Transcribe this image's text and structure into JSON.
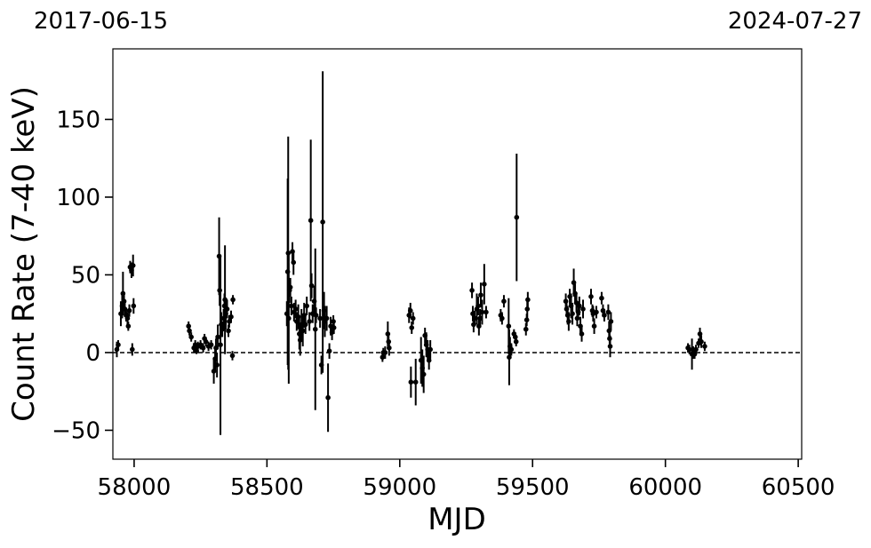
{
  "chart_data": {
    "type": "scatter",
    "annotations": [
      "2017-06-15",
      "2024-07-27"
    ],
    "xlabel": "MJD",
    "ylabel": "Count Rate (7-40 keV)",
    "color": "#000000",
    "hline": 0,
    "xlim": [
      57920,
      60513
    ],
    "ylim": [
      -68.6,
      195.4
    ],
    "xticks": [
      58000,
      58500,
      59000,
      59500,
      60000,
      60500
    ],
    "yticks": [
      {
        "value": -50,
        "label": "−50"
      },
      0,
      50,
      100,
      150
    ],
    "x": [
      57935,
      57940,
      57950,
      57955,
      57958,
      57962,
      57965,
      57970,
      57975,
      57978,
      57982,
      57985,
      57990,
      57993,
      57996,
      57998,
      58205,
      58208,
      58215,
      58225,
      58230,
      58235,
      58240,
      58250,
      58260,
      58265,
      58270,
      58280,
      58290,
      58300,
      58305,
      58308,
      58312,
      58315,
      58320,
      58322,
      58325,
      58328,
      58332,
      58337,
      58340,
      58342,
      58345,
      58350,
      58355,
      58358,
      58365,
      58370,
      58372,
      58575,
      58578,
      58580,
      58582,
      58585,
      58588,
      58592,
      58596,
      58600,
      58602,
      58608,
      58612,
      58618,
      58622,
      58625,
      58630,
      58635,
      58640,
      58645,
      58650,
      58660,
      58665,
      58668,
      58672,
      58678,
      58682,
      58685,
      58700,
      58705,
      58710,
      58715,
      58718,
      58725,
      58730,
      58735,
      58740,
      58745,
      58750,
      58752,
      58935,
      58938,
      58945,
      58955,
      58958,
      58960,
      59035,
      59040,
      59042,
      59045,
      59050,
      59060,
      59080,
      59085,
      59090,
      59095,
      59100,
      59105,
      59110,
      59115,
      59272,
      59275,
      59278,
      59282,
      59290,
      59295,
      59298,
      59302,
      59305,
      59310,
      59318,
      59325,
      59380,
      59385,
      59392,
      59410,
      59412,
      59415,
      59420,
      59430,
      59435,
      59438,
      59440,
      59475,
      59478,
      59480,
      59482,
      59625,
      59628,
      59632,
      59636,
      59640,
      59645,
      59650,
      59655,
      59660,
      59665,
      59668,
      59672,
      59676,
      59680,
      59685,
      59690,
      59720,
      59725,
      59728,
      59732,
      59740,
      59760,
      59765,
      59770,
      59785,
      59788,
      59790,
      59792,
      59795,
      60085,
      60090,
      60100,
      60105,
      60110,
      60115,
      60125,
      60130,
      60135,
      60148
    ],
    "values": [
      2,
      5,
      25,
      30,
      38,
      33,
      28,
      24,
      22,
      17,
      27,
      55,
      53,
      2,
      56,
      30,
      17,
      14,
      10,
      3,
      5,
      1,
      4,
      5,
      3,
      9,
      7,
      4,
      5,
      -12,
      -4,
      3,
      -8,
      10,
      62,
      40,
      5,
      18,
      15,
      22,
      30,
      34,
      25,
      28,
      14,
      20,
      23,
      -2,
      34,
      25,
      52,
      64,
      22,
      40,
      42,
      30,
      65,
      58,
      26,
      28,
      20,
      23,
      12,
      8,
      18,
      14,
      24,
      18,
      30,
      20,
      85,
      43,
      25,
      33,
      15,
      24,
      22,
      -8,
      84,
      27,
      20,
      22,
      -29,
      1,
      17,
      13,
      20,
      16,
      -3,
      0,
      0,
      12,
      7,
      3,
      24,
      27,
      -19,
      16,
      22,
      -19,
      -5,
      -10,
      -14,
      11,
      5,
      2,
      -5,
      2,
      40,
      25,
      18,
      22,
      28,
      30,
      17,
      22,
      37,
      26,
      44,
      26,
      24,
      22,
      33,
      17,
      -3,
      4,
      2,
      12,
      10,
      7,
      87,
      15,
      21,
      28,
      34,
      33,
      28,
      24,
      20,
      36,
      30,
      25,
      45,
      38,
      32,
      22,
      26,
      30,
      17,
      12,
      28,
      36,
      27,
      25,
      17,
      26,
      35,
      27,
      24,
      26,
      14,
      9,
      4,
      20,
      3,
      2,
      -1,
      0,
      -1,
      2,
      6,
      12,
      7,
      4
    ],
    "errors": [
      5,
      3,
      8,
      8,
      14,
      6,
      5,
      4,
      4,
      3,
      4,
      4,
      5,
      4,
      7,
      5,
      3,
      3,
      3,
      3,
      3,
      2,
      3,
      3,
      3,
      3,
      3,
      3,
      3,
      8,
      8,
      6,
      8,
      8,
      25,
      10,
      58,
      8,
      5,
      6,
      8,
      35,
      10,
      6,
      4,
      4,
      4,
      3,
      3,
      8,
      60,
      75,
      42,
      8,
      6,
      6,
      6,
      8,
      6,
      6,
      6,
      8,
      10,
      10,
      10,
      10,
      8,
      6,
      6,
      6,
      52,
      8,
      6,
      10,
      52,
      5,
      6,
      6,
      97,
      12,
      10,
      8,
      22,
      5,
      6,
      5,
      4,
      4,
      3,
      3,
      4,
      8,
      5,
      5,
      5,
      5,
      10,
      4,
      4,
      15,
      15,
      12,
      12,
      5,
      8,
      6,
      6,
      6,
      5,
      5,
      5,
      5,
      10,
      6,
      6,
      6,
      8,
      8,
      13,
      4,
      4,
      4,
      4,
      18,
      18,
      6,
      4,
      3,
      3,
      3,
      41,
      4,
      4,
      6,
      5,
      5,
      5,
      6,
      6,
      5,
      8,
      7,
      9,
      6,
      6,
      5,
      5,
      6,
      6,
      5,
      6,
      5,
      4,
      5,
      5,
      4,
      4,
      4,
      4,
      5,
      6,
      6,
      7,
      6,
      3,
      3,
      10,
      4,
      3,
      3,
      3,
      4,
      4,
      3
    ]
  }
}
